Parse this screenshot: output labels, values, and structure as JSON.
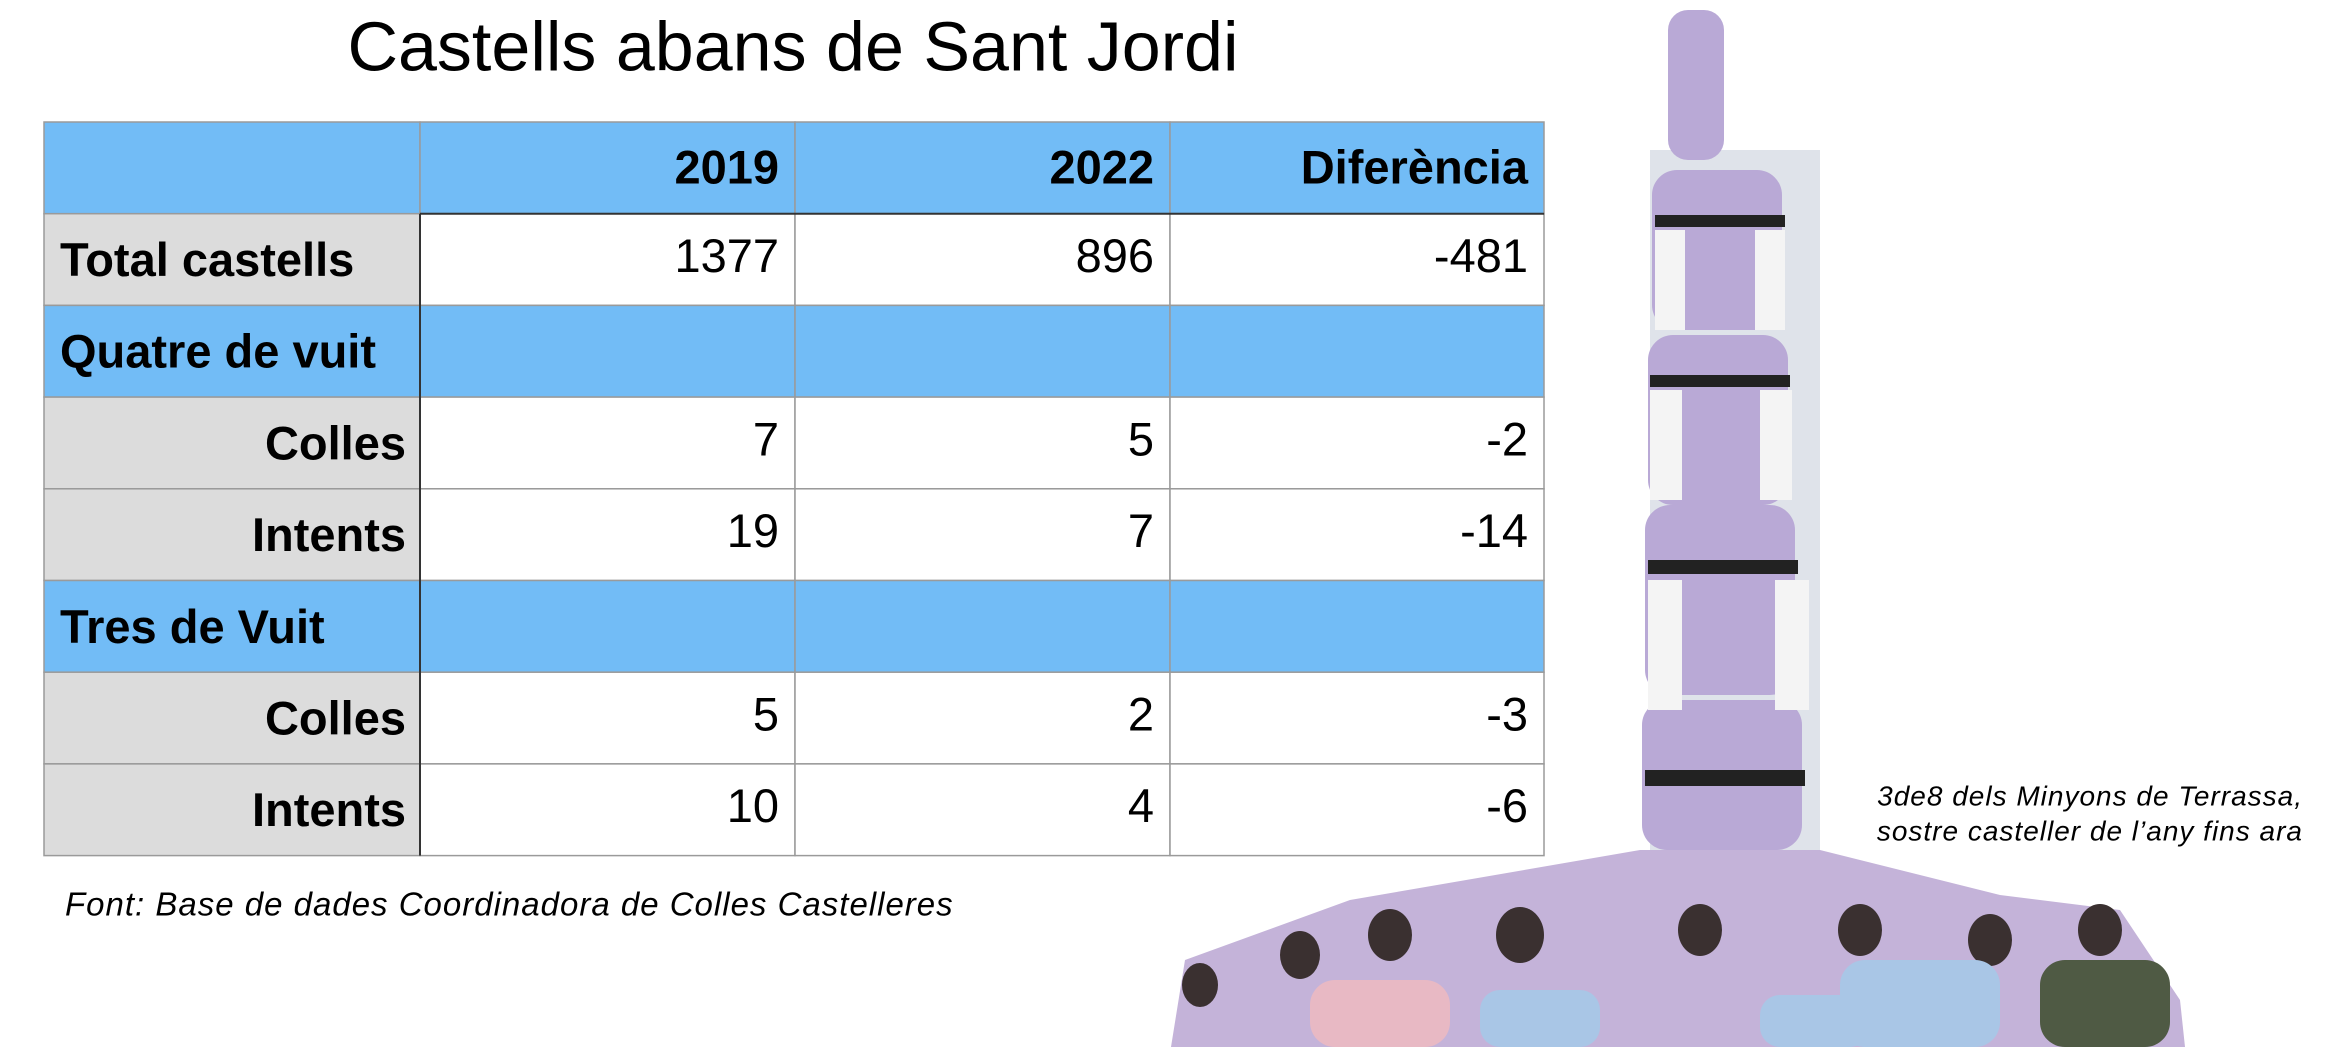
{
  "title": "Castells abans de Sant Jordi",
  "table": {
    "columns": [
      "2019",
      "2022",
      "Diferència"
    ],
    "rows": [
      {
        "label": "Total castells",
        "values": [
          1377,
          896,
          -481
        ]
      },
      {
        "section": "Quatre de vuit"
      },
      {
        "label": "Colles",
        "values": [
          7,
          5,
          -2
        ]
      },
      {
        "label": "Intents",
        "values": [
          19,
          7,
          -14
        ]
      },
      {
        "section": "Tres de Vuit"
      },
      {
        "label": "Colles",
        "values": [
          5,
          2,
          -3
        ]
      },
      {
        "label": "Intents",
        "values": [
          10,
          4,
          -6
        ]
      }
    ]
  },
  "source": "Font: Base de dades Coordinadora de Colles Castelleres",
  "caption": [
    "3de8 dels Minyons de Terrassa,",
    "sostre casteller de l’any fins ara"
  ]
}
